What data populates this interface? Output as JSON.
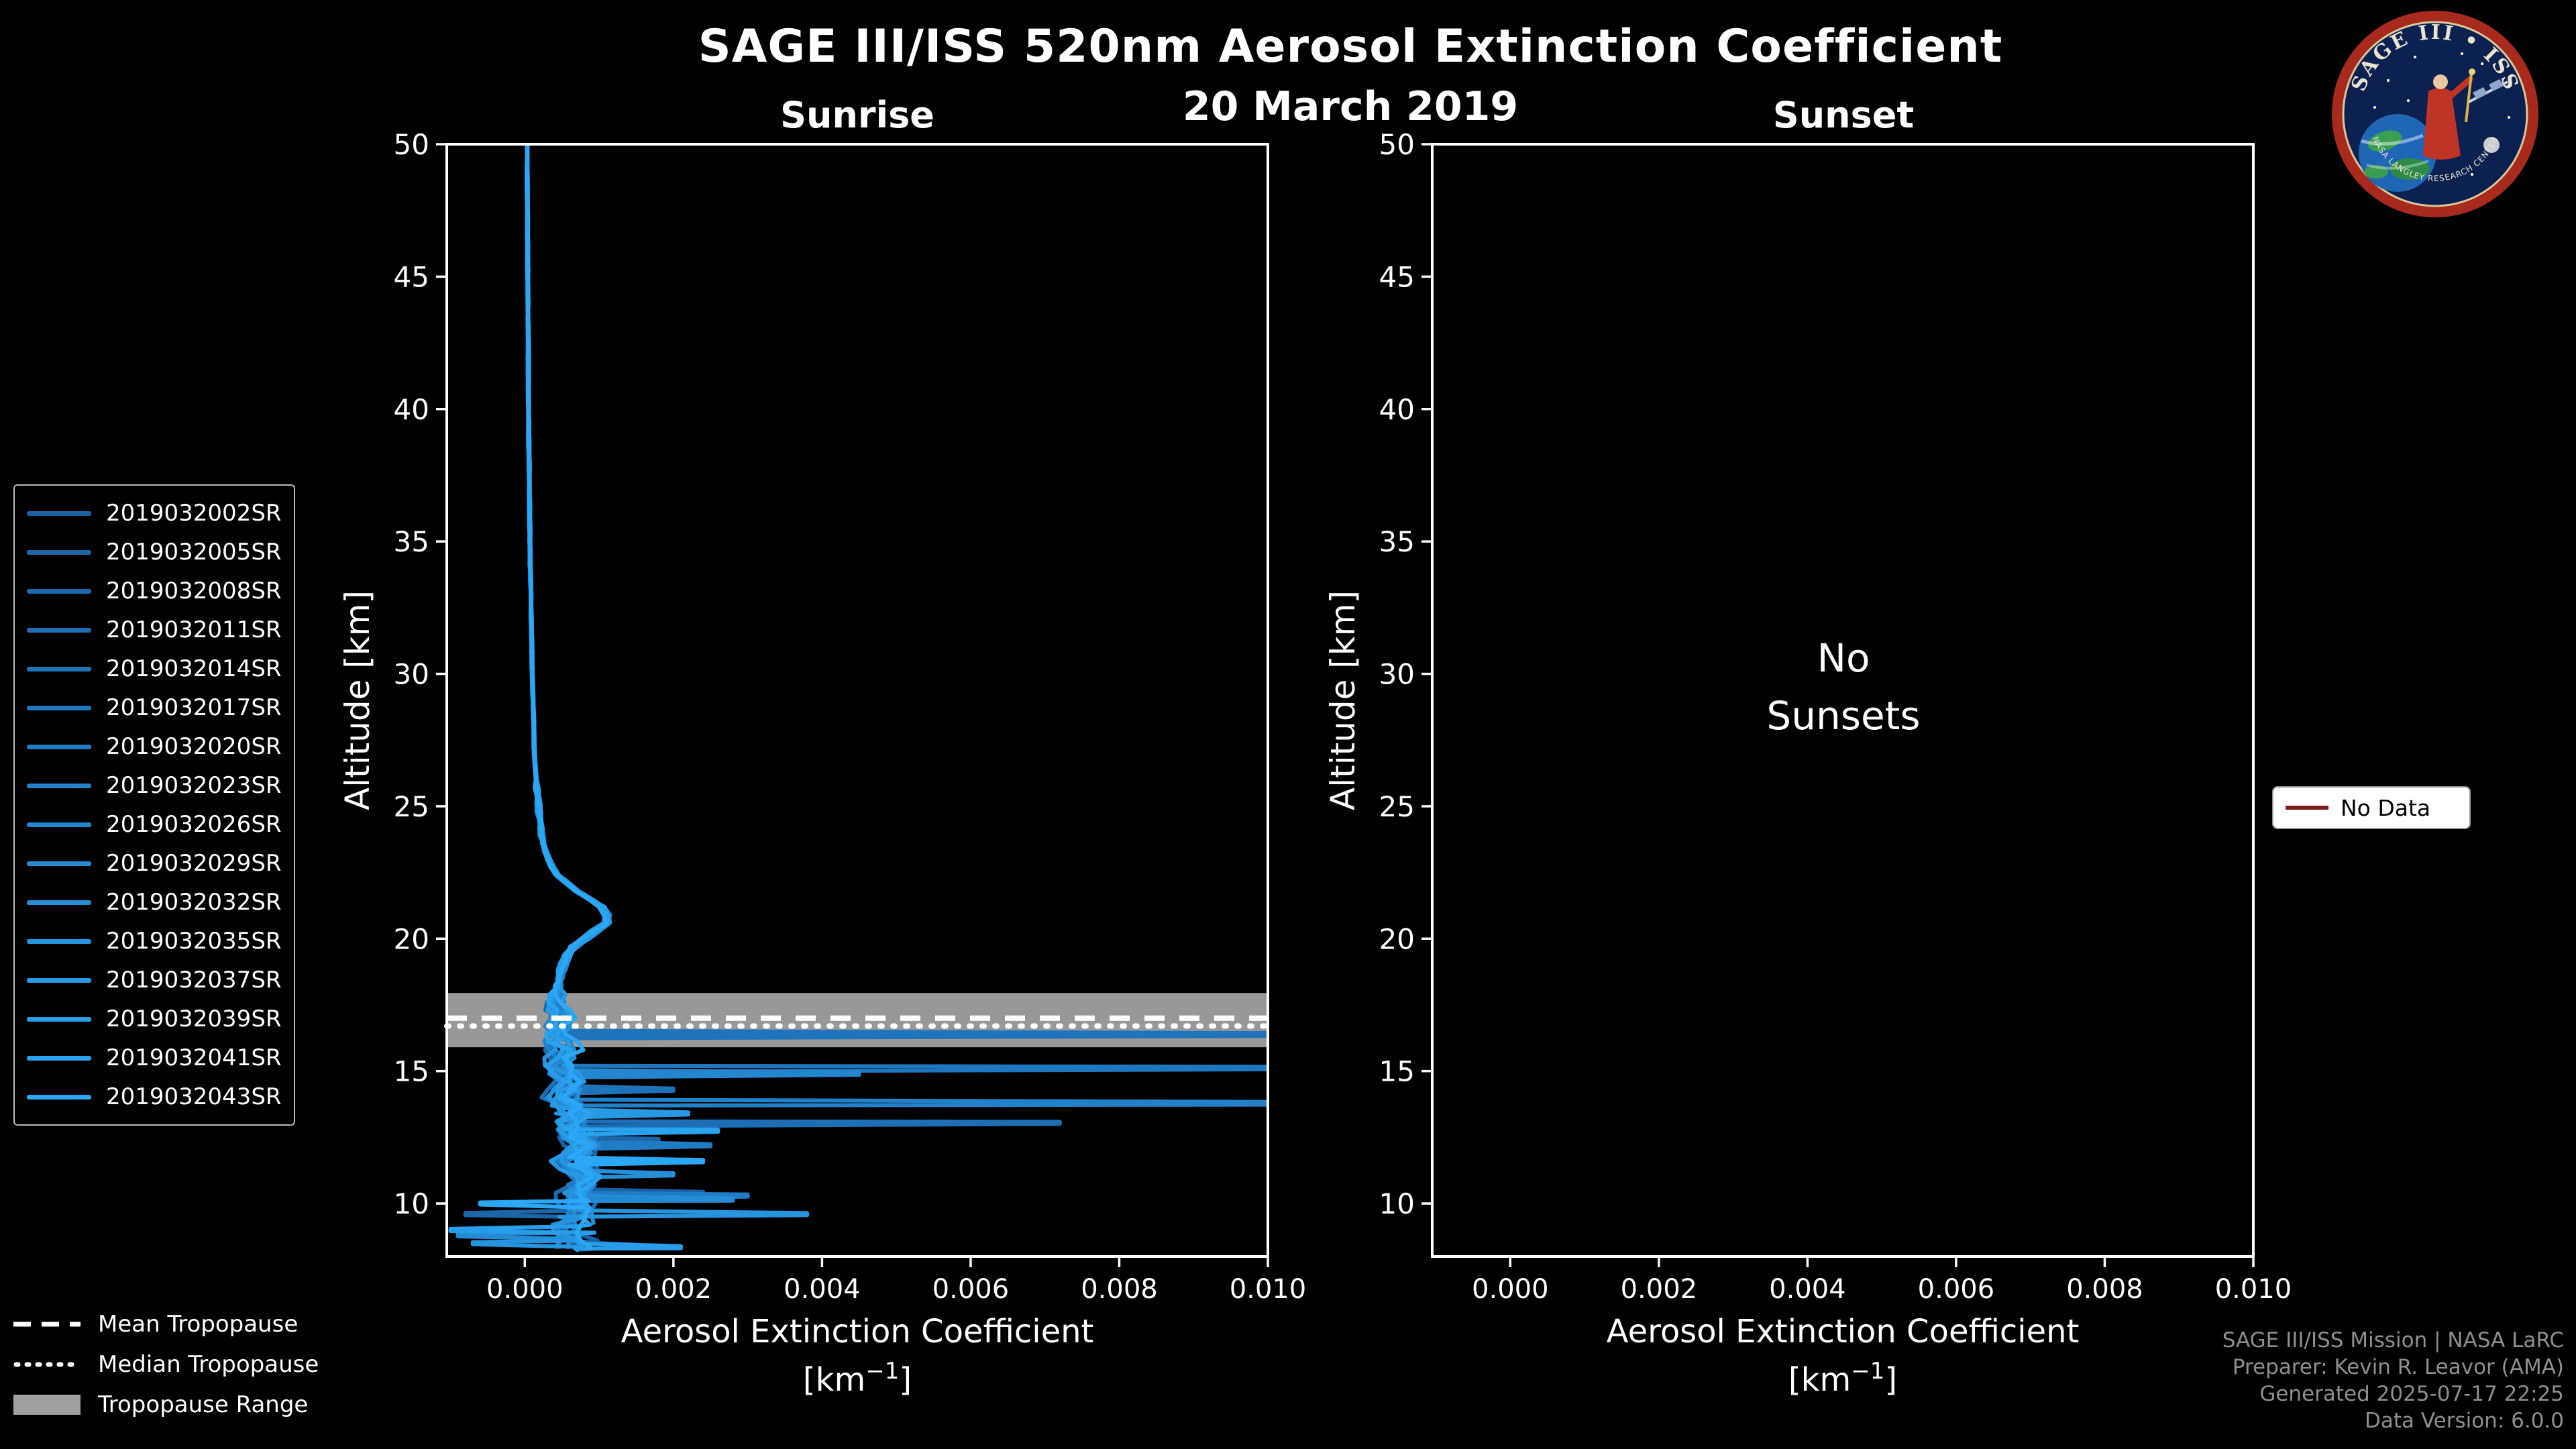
{
  "header": {
    "title": "SAGE III/ISS 520nm Aerosol Extinction Coefficient",
    "date": "20 March 2019"
  },
  "no_data_legend": {
    "label": "No Data",
    "line_color": "#7a1d1d"
  },
  "tropopause_legend": {
    "mean_label": "Mean Tropopause",
    "median_label": "Median Tropopause",
    "range_label": "Tropopause Range"
  },
  "credits": {
    "line1": "SAGE III/ISS Mission | NASA LaRC",
    "line2": "Preparer: Kevin R. Leavor (AMA)",
    "line3": "Generated 2025-07-17 22:25",
    "line4": "Data Version: 6.0.0"
  },
  "logo": {
    "title_text": "SAGE III • ISS",
    "bottom_text": "NASA LANGLEY RESEARCH CENTER"
  },
  "chart_data": {
    "type": "line",
    "title": "SAGE III/ISS 520nm Aerosol Extinction Coefficient",
    "subtitle": "20 March 2019",
    "legend_position": "left",
    "axes": {
      "xlabel": "Aerosol Extinction Coefficient",
      "xunit_prefix": "[km",
      "xunit_sup": "−1",
      "xunit_suffix": "]",
      "ylabel": "Altitude [km]",
      "xlim": [
        -0.00105,
        0.01
      ],
      "ylim": [
        8,
        50
      ],
      "xticks": [
        0.0,
        0.002,
        0.004,
        0.006,
        0.008,
        0.01
      ],
      "xtick_labels": [
        "0.000",
        "0.002",
        "0.004",
        "0.006",
        "0.008",
        "0.010"
      ],
      "yticks": [
        10,
        15,
        20,
        25,
        30,
        35,
        40,
        45,
        50
      ]
    },
    "panels": [
      {
        "title": "Sunrise",
        "has_data": true,
        "tropopause": {
          "mean_km": 17.0,
          "median_km": 16.7,
          "range_km": [
            15.9,
            17.95
          ],
          "band_color": "#a0a0a0"
        },
        "base_profile": {
          "altitude_km": [
            50,
            45,
            40,
            35,
            30,
            27,
            25,
            23.5,
            22.5,
            21.8,
            21.2,
            20.7,
            20.2,
            19.6,
            19.0,
            18.3,
            17.6,
            17.0,
            16.4,
            15.8,
            15.2,
            14.6,
            14.0,
            13.4,
            12.8,
            12.2,
            11.6,
            11.0,
            10.4,
            9.8,
            9.2,
            8.6,
            8.0
          ],
          "extinction_per_km": [
            3e-05,
            4e-05,
            5e-05,
            7e-05,
            0.0001,
            0.00013,
            0.00018,
            0.00025,
            0.0004,
            0.0007,
            0.00105,
            0.00115,
            0.0009,
            0.00062,
            0.0005,
            0.00045,
            0.0004,
            0.0005,
            0.00042,
            0.00055,
            0.0005,
            0.0006,
            0.00055,
            0.0007,
            0.0006,
            0.00075,
            0.0006,
            0.0008,
            0.00065,
            0.0008,
            0.0007,
            0.00075,
            0.0007
          ]
        },
        "series": [
          {
            "name": "2019032002SR",
            "color": "#1a60a4",
            "bottom_km": 8.1,
            "anomalies": [
              [
                10.4,
                0.0024
              ],
              [
                9.0,
                -0.0009
              ],
              [
                8.4,
                0.0015
              ]
            ]
          },
          {
            "name": "2019032005SR",
            "color": "#1b65a9",
            "bottom_km": 8.1,
            "anomalies": [
              [
                12.4,
                0.0018
              ],
              [
                9.6,
                -0.0008
              ]
            ]
          },
          {
            "name": "2019032008SR",
            "color": "#1c69af",
            "bottom_km": 9.0,
            "anomalies": [
              [
                13.0,
                0.003
              ]
            ]
          },
          {
            "name": "2019032011SR",
            "color": "#1d6eb4",
            "bottom_km": 8.1,
            "anomalies": [
              [
                13.05,
                0.0072
              ]
            ]
          },
          {
            "name": "2019032014SR",
            "color": "#1e73ba",
            "bottom_km": 10.4,
            "anomalies": [
              [
                16.38,
                0.0115
              ],
              [
                14.3,
                0.002
              ]
            ]
          },
          {
            "name": "2019032017SR",
            "color": "#1f78bf",
            "bottom_km": 8.1,
            "anomalies": [
              [
                15.12,
                0.0115
              ]
            ]
          },
          {
            "name": "2019032020SR",
            "color": "#207cc4",
            "bottom_km": 9.5,
            "anomalies": [
              [
                12.2,
                0.0025
              ],
              [
                10.3,
                0.003
              ]
            ]
          },
          {
            "name": "2019032023SR",
            "color": "#2181ca",
            "bottom_km": 8.1,
            "anomalies": [
              [
                13.78,
                0.0115
              ]
            ]
          },
          {
            "name": "2019032026SR",
            "color": "#2386cf",
            "bottom_km": 10.0,
            "anomalies": [
              [
                14.9,
                0.0045
              ]
            ]
          },
          {
            "name": "2019032029SR",
            "color": "#248bd5",
            "bottom_km": 8.1,
            "anomalies": [
              [
                10.15,
                0.0028
              ],
              [
                8.8,
                -0.0009
              ]
            ]
          },
          {
            "name": "2019032032SR",
            "color": "#258fda",
            "bottom_km": 9.2,
            "anomalies": [
              [
                11.1,
                0.002
              ]
            ]
          },
          {
            "name": "2019032035SR",
            "color": "#2694df",
            "bottom_km": 8.1,
            "anomalies": [
              [
                9.6,
                0.0038
              ],
              [
                8.5,
                -0.0007
              ]
            ]
          },
          {
            "name": "2019032037SR",
            "color": "#2799e5",
            "bottom_km": 10.6,
            "anomalies": [
              [
                13.4,
                0.0022
              ]
            ]
          },
          {
            "name": "2019032039SR",
            "color": "#289eea",
            "bottom_km": 8.1,
            "anomalies": [
              [
                8.35,
                0.0021
              ],
              [
                9.0,
                -0.001
              ]
            ]
          },
          {
            "name": "2019032041SR",
            "color": "#29a2f0",
            "bottom_km": 9.8,
            "anomalies": [
              [
                12.75,
                0.0026
              ]
            ]
          },
          {
            "name": "2019032043SR",
            "color": "#2aa7f5",
            "bottom_km": 8.1,
            "anomalies": [
              [
                11.6,
                0.0024
              ],
              [
                10.0,
                -0.0006
              ]
            ]
          }
        ]
      },
      {
        "title": "Sunset",
        "has_data": false,
        "message_lines": [
          "No",
          "Sunsets"
        ]
      }
    ]
  }
}
